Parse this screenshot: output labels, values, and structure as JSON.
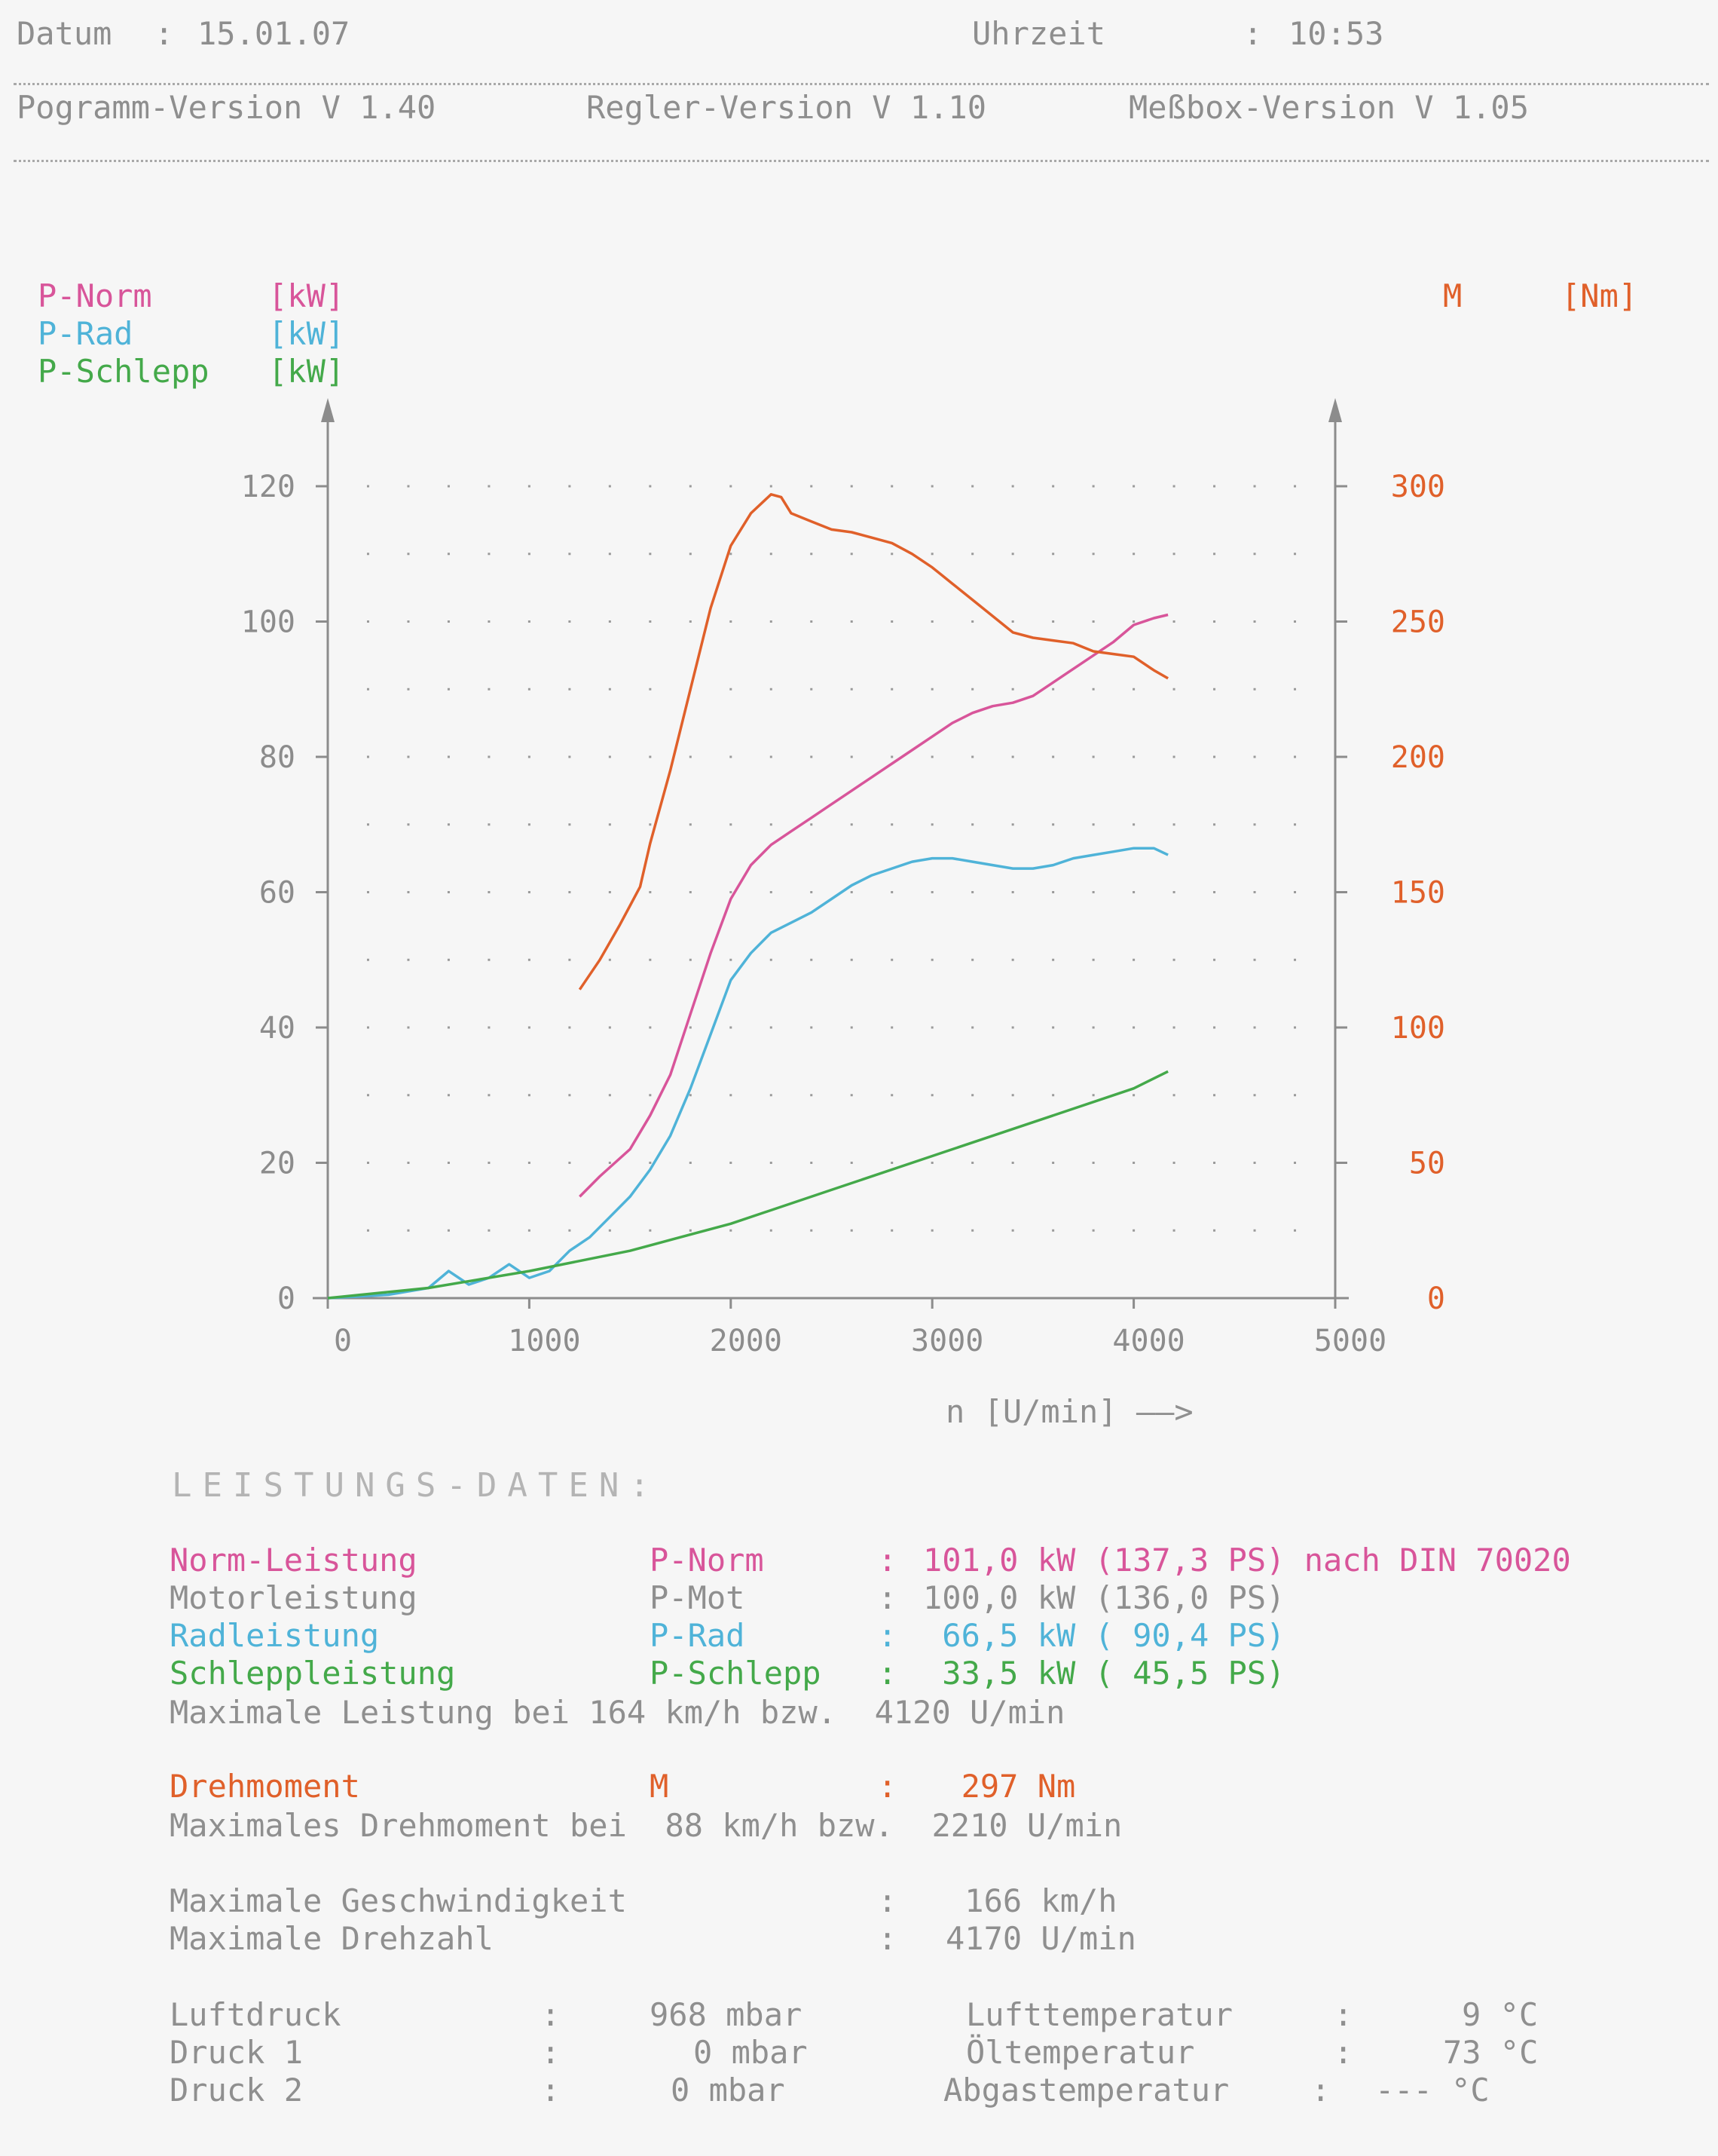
{
  "header": {
    "date_label": "Datum",
    "date_value": "15.01.07",
    "time_label": "Uhrzeit",
    "time_value": "10:53",
    "program_version": "Pogramm-Version V 1.40",
    "controller_version": "Regler-Version V 1.10",
    "box_version": "Meßbox-Version V 1.05"
  },
  "legend": {
    "left": [
      {
        "name": "P-Norm",
        "unit": "[kW]",
        "color": "#d8559a"
      },
      {
        "name": "P-Rad",
        "unit": "[kW]",
        "color": "#4fb3d8"
      },
      {
        "name": "P-Schlepp",
        "unit": "[kW]",
        "color": "#44a94a"
      }
    ],
    "right": {
      "name": "M",
      "unit": "[Nm]",
      "color": "#e0602a"
    }
  },
  "chart_data": {
    "type": "line",
    "xlabel": "n [U/min] ——>",
    "xlim": [
      0,
      5000
    ],
    "ylim_left": [
      0,
      120
    ],
    "ylim_right": [
      0,
      300
    ],
    "x_ticks": [
      "0",
      "1000",
      "2000",
      "3000",
      "4000",
      "5000"
    ],
    "y_left_ticks": [
      "0",
      "20",
      "40",
      "60",
      "80",
      "100",
      "120"
    ],
    "y_right_ticks": [
      "0",
      "50",
      "100",
      "150",
      "200",
      "250",
      "300"
    ],
    "grid": true,
    "series": [
      {
        "name": "P-Norm",
        "axis": "left",
        "color": "#d8559a",
        "x": [
          1250,
          1350,
          1500,
          1600,
          1700,
          1800,
          1900,
          2000,
          2100,
          2200,
          2300,
          2400,
          2500,
          2600,
          2700,
          2800,
          2900,
          3000,
          3100,
          3200,
          3300,
          3400,
          3500,
          3600,
          3700,
          3800,
          3900,
          4000,
          4100,
          4170
        ],
        "y": [
          15,
          18,
          22,
          27,
          33,
          42,
          51,
          59,
          64,
          67,
          69,
          71,
          73,
          75,
          77,
          79,
          81,
          83,
          85,
          86.5,
          87.5,
          88,
          89,
          91,
          93,
          95,
          97,
          99.5,
          100.5,
          101
        ]
      },
      {
        "name": "P-Rad",
        "axis": "left",
        "color": "#4fb3d8",
        "x": [
          0,
          300,
          500,
          600,
          700,
          800,
          900,
          1000,
          1100,
          1200,
          1300,
          1400,
          1500,
          1600,
          1700,
          1800,
          1900,
          2000,
          2100,
          2200,
          2300,
          2400,
          2500,
          2600,
          2700,
          2800,
          2900,
          3000,
          3100,
          3200,
          3300,
          3400,
          3500,
          3600,
          3700,
          3800,
          3900,
          4000,
          4100,
          4170
        ],
        "y": [
          0,
          0.5,
          1.5,
          4,
          2,
          3,
          5,
          3,
          4,
          7,
          9,
          12,
          15,
          19,
          24,
          31,
          39,
          47,
          51,
          54,
          55.5,
          57,
          59,
          61,
          62.5,
          63.5,
          64.5,
          65,
          65,
          64.5,
          64,
          63.5,
          63.5,
          64,
          65,
          65.5,
          66,
          66.5,
          66.5,
          65.5
        ]
      },
      {
        "name": "P-Schlepp",
        "axis": "left",
        "color": "#44a94a",
        "x": [
          0,
          500,
          1000,
          1500,
          2000,
          2500,
          3000,
          3500,
          4000,
          4170
        ],
        "y": [
          0,
          1.5,
          4,
          7,
          11,
          16,
          21,
          26,
          31,
          33.5
        ]
      },
      {
        "name": "M",
        "axis": "right",
        "color": "#e0602a",
        "x": [
          1250,
          1350,
          1450,
          1500,
          1550,
          1600,
          1700,
          1800,
          1900,
          2000,
          2100,
          2200,
          2250,
          2300,
          2400,
          2500,
          2600,
          2700,
          2800,
          2900,
          3000,
          3100,
          3200,
          3300,
          3400,
          3500,
          3600,
          3700,
          3800,
          3900,
          4000,
          4100,
          4170
        ],
        "y": [
          114,
          125,
          138,
          145,
          152,
          168,
          195,
          225,
          255,
          278,
          290,
          297,
          296,
          290,
          287,
          284,
          283,
          281,
          279,
          275,
          270,
          264,
          258,
          252,
          246,
          244,
          243,
          242,
          239,
          238,
          237,
          232,
          229
        ]
      }
    ]
  },
  "data_section": {
    "title": "LEISTUNGS-DATEN:",
    "rows": [
      {
        "label": "Norm-Leistung",
        "symbol": "P-Norm",
        "sep": ":",
        "value": "101,0 kW (137,3 PS) nach DIN 70020",
        "color": "#d8559a"
      },
      {
        "label": "Motorleistung",
        "symbol": "P-Mot",
        "sep": ":",
        "value": "100,0 kW (136,0 PS)",
        "color": "#8f8f8f"
      },
      {
        "label": "Radleistung",
        "symbol": "P-Rad",
        "sep": ":",
        "value": " 66,5 kW ( 90,4 PS)",
        "color": "#4fb3d8"
      },
      {
        "label": "Schleppleistung",
        "symbol": "P-Schlepp",
        "sep": ":",
        "value": " 33,5 kW ( 45,5 PS)",
        "color": "#44a94a"
      }
    ],
    "max_power_text": "Maximale Leistung bei 164 km/h bzw.  4120 U/min",
    "torque": {
      "label": "Drehmoment",
      "symbol": "M",
      "sep": ":",
      "value": "  297 Nm",
      "color": "#e0602a"
    },
    "max_torque_text": "Maximales Drehmoment bei  88 km/h bzw.  2210 U/min",
    "max_speed": {
      "label": "Maximale Geschwindigkeit",
      "sep": ":",
      "value": " 166 km/h"
    },
    "max_rpm": {
      "label": "Maximale Drehzahl",
      "sep": ":",
      "value": "4170 U/min"
    },
    "env": [
      {
        "label": "Luftdruck",
        "sep": ":",
        "value": "968 mbar",
        "label2": "Lufttemperatur",
        "sep2": ":",
        "value2": "9 °C"
      },
      {
        "label": "Druck 1",
        "sep": ":",
        "value": "0 mbar",
        "label2": "Öltemperatur",
        "sep2": ":",
        "value2": "73 °C"
      },
      {
        "label": "Druck 2",
        "sep": ":",
        "value": "0 mbar",
        "label2": "Abgastemperatur",
        "sep2": ":",
        "value2": "--- °C"
      }
    ]
  }
}
